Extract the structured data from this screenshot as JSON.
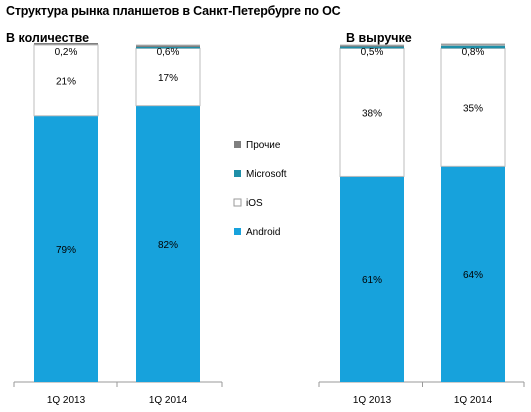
{
  "title": "Структура рынка планшетов в Санкт-Петербурге по ОС",
  "chart_data": [
    {
      "type": "bar",
      "stacked": true,
      "title": "В количестве",
      "categories": [
        "1Q 2013",
        "1Q 2014"
      ],
      "series": [
        {
          "name": "Android",
          "values": [
            79,
            82
          ],
          "labels": [
            "79%",
            "82%"
          ]
        },
        {
          "name": "iOS",
          "values": [
            21,
            17
          ],
          "labels": [
            "21%",
            "17%"
          ]
        },
        {
          "name": "Microsoft",
          "values": [
            0,
            0.4
          ],
          "labels": [
            "",
            ""
          ]
        },
        {
          "name": "Прочие",
          "values": [
            0.2,
            0.6
          ],
          "labels": [
            "0,2%",
            "0,6%"
          ]
        }
      ],
      "ylim": [
        0,
        100
      ]
    },
    {
      "type": "bar",
      "stacked": true,
      "title": "В выручке",
      "categories": [
        "1Q 2013",
        "1Q 2014"
      ],
      "series": [
        {
          "name": "Android",
          "values": [
            61,
            64
          ],
          "labels": [
            "61%",
            "64%"
          ]
        },
        {
          "name": "iOS",
          "values": [
            38,
            35
          ],
          "labels": [
            "38%",
            "35%"
          ]
        },
        {
          "name": "Microsoft",
          "values": [
            0.5,
            0.8
          ],
          "labels": [
            "0,5%",
            "0,8%"
          ]
        },
        {
          "name": "Прочие",
          "values": [
            0.3,
            0.2
          ],
          "labels": [
            "",
            ""
          ]
        }
      ],
      "ylim": [
        0,
        100
      ]
    }
  ],
  "legend": {
    "placement": "center",
    "items": [
      "Прочие",
      "Microsoft",
      "iOS",
      "Android"
    ]
  },
  "colors": {
    "Android": "#17a2dc",
    "iOS": "#ffffff",
    "Microsoft": "#1f8fa8",
    "Прочие": "#7f7f7f"
  }
}
